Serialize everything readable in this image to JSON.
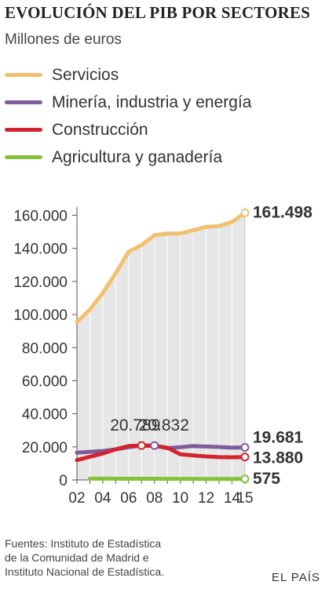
{
  "title": "EVOLUCIÓN DEL PIB POR SECTORES",
  "subtitle": "Millones de euros",
  "legend": [
    {
      "label": "Servicios",
      "color": "#f2c170"
    },
    {
      "label": "Minería, industria y energía",
      "color": "#7e5c9c"
    },
    {
      "label": "Construcción",
      "color": "#d3232d"
    },
    {
      "label": "Agricultura y ganadería",
      "color": "#86c13b"
    }
  ],
  "footer": {
    "lines": [
      "Fuentes: Instituto de Estadística",
      "de la Comunidad de Madrid e",
      "Instituto Nacional de Estadística."
    ],
    "brand": "EL PAÍS"
  },
  "chart_data": {
    "type": "line",
    "x": [
      2002,
      2003,
      2004,
      2005,
      2006,
      2007,
      2008,
      2009,
      2010,
      2011,
      2012,
      2013,
      2014,
      2015
    ],
    "x_tick_labels": [
      "02",
      "04",
      "06",
      "08",
      "10",
      "12",
      "14",
      "15"
    ],
    "x_tick_values": [
      2002,
      2004,
      2006,
      2008,
      2010,
      2012,
      2014,
      2015
    ],
    "y_tick_labels": [
      "0",
      "20.000",
      "40.000",
      "60.000",
      "80.000",
      "100.000",
      "120.000",
      "140.000",
      "160.000"
    ],
    "y_tick_values": [
      0,
      20000,
      40000,
      60000,
      80000,
      100000,
      120000,
      140000,
      160000
    ],
    "ylim": [
      0,
      165000
    ],
    "xlim": [
      2002,
      2015
    ],
    "grid": "vertical",
    "area_fill_series": "Servicios",
    "series": [
      {
        "name": "Servicios",
        "color": "#f2c170",
        "x": [
          2002,
          2003,
          2004,
          2005,
          2006,
          2007,
          2008,
          2009,
          2010,
          2011,
          2012,
          2013,
          2014,
          2015
        ],
        "values": [
          95500,
          103000,
          113000,
          125000,
          138000,
          142000,
          148000,
          149000,
          149000,
          151000,
          153000,
          153500,
          156000,
          161498
        ]
      },
      {
        "name": "Minería, industria y energía",
        "color": "#7e5c9c",
        "x": [
          2002,
          2003,
          2004,
          2005,
          2006,
          2007,
          2008,
          2009,
          2010,
          2011,
          2012,
          2013,
          2014,
          2015
        ],
        "values": [
          16500,
          17000,
          17500,
          18500,
          19800,
          20789,
          20832,
          19200,
          19800,
          20500,
          20200,
          19900,
          19500,
          19681
        ]
      },
      {
        "name": "Construcción",
        "color": "#d3232d",
        "x": [
          2002,
          2003,
          2004,
          2005,
          2006,
          2007,
          2008,
          2009,
          2010,
          2011,
          2012,
          2013,
          2014,
          2015
        ],
        "values": [
          12000,
          14000,
          16000,
          18500,
          20500,
          20789,
          20500,
          19500,
          15500,
          14800,
          14200,
          13800,
          13700,
          13880
        ]
      },
      {
        "name": "Agricultura y ganadería",
        "color": "#86c13b",
        "x": [
          2003,
          2004,
          2005,
          2006,
          2007,
          2008,
          2009,
          2010,
          2011,
          2012,
          2013,
          2014,
          2015
        ],
        "values": [
          800,
          780,
          760,
          740,
          720,
          700,
          680,
          650,
          630,
          610,
          600,
          590,
          575
        ]
      }
    ],
    "annotations": [
      {
        "label": "161.498",
        "series": "Servicios",
        "x": 2015,
        "y": 161498
      },
      {
        "label": "19.681",
        "series": "Minería, industria y energía",
        "x": 2015,
        "y": 19681
      },
      {
        "label": "13.880",
        "series": "Construcción",
        "x": 2015,
        "y": 13880
      },
      {
        "label": "575",
        "series": "Agricultura y ganadería",
        "x": 2015,
        "y": 575
      },
      {
        "label": "20.789",
        "series": "Construcción",
        "x": 2007,
        "y": 20789
      },
      {
        "label": "20.832",
        "series": "Minería, industria y energía",
        "x": 2008,
        "y": 20832
      }
    ]
  }
}
